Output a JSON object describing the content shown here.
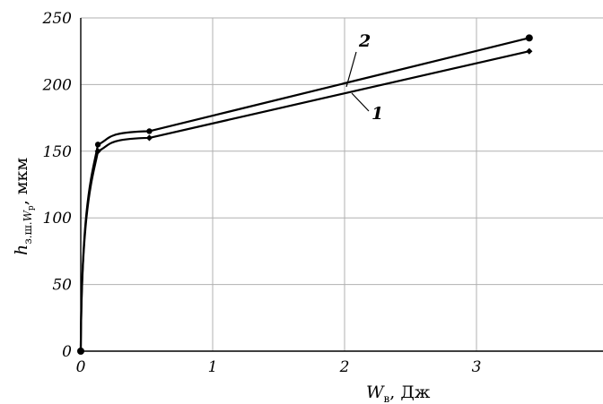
{
  "chart_data": {
    "type": "line",
    "xlabel": {
      "symbol": "W",
      "subscript": "в",
      "unit": ", Дж"
    },
    "ylabel": {
      "symbol": "h",
      "subscript": "з.ш.",
      "subscript2_symbol": "W",
      "subscript2_sub": "р",
      "unit": ", мкм"
    },
    "xlim": [
      0,
      4
    ],
    "ylim": [
      0,
      250
    ],
    "xticks": [
      0,
      1,
      2,
      3,
      4
    ],
    "yticks": [
      0,
      50,
      100,
      150,
      200,
      250
    ],
    "grid": true,
    "series": [
      {
        "name": "1",
        "marker": "diamond",
        "points": [
          [
            0,
            0
          ],
          [
            0.13,
            150
          ],
          [
            0.52,
            160
          ],
          [
            3.4,
            225
          ]
        ]
      },
      {
        "name": "2",
        "marker": "circle",
        "points": [
          [
            0,
            0
          ],
          [
            0.13,
            155
          ],
          [
            0.52,
            165
          ],
          [
            3.4,
            235
          ]
        ]
      }
    ]
  }
}
